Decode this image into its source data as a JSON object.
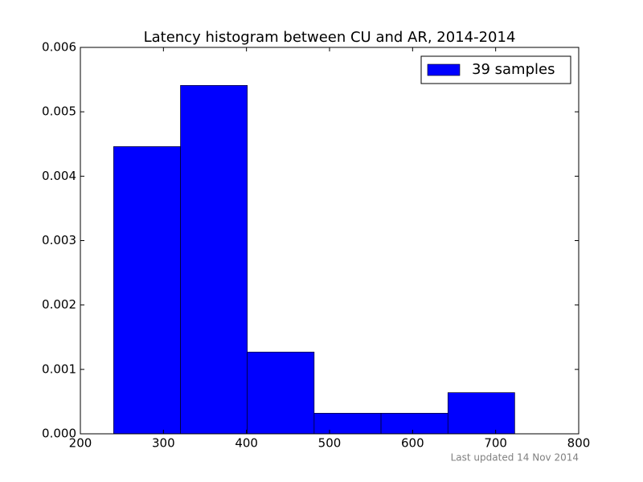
{
  "chart_data": {
    "type": "histogram",
    "title": "Latency histogram between CU and AR, 2014-2014",
    "bins": [
      240,
      320.5,
      401,
      481.5,
      562,
      642.5,
      723
    ],
    "series": [
      {
        "name": "39 samples",
        "color": "#0000ff",
        "values": [
          0.00446,
          0.00541,
          0.00127,
          0.00032,
          0.00032,
          0.00064
        ]
      }
    ],
    "xlim": [
      200,
      800
    ],
    "xticks": [
      200,
      300,
      400,
      500,
      600,
      700,
      800
    ],
    "ylim": [
      0,
      0.006
    ],
    "yticks": [
      {
        "value": 0,
        "label": "0.000"
      },
      {
        "value": 0.001,
        "label": "0.001"
      },
      {
        "value": 0.002,
        "label": "0.002"
      },
      {
        "value": 0.003,
        "label": "0.003"
      },
      {
        "value": 0.004,
        "label": "0.004"
      },
      {
        "value": 0.005,
        "label": "0.005"
      },
      {
        "value": 0.006,
        "label": "0.006"
      }
    ],
    "legend": "upper right",
    "footnote": "Last updated 14 Nov 2014"
  }
}
